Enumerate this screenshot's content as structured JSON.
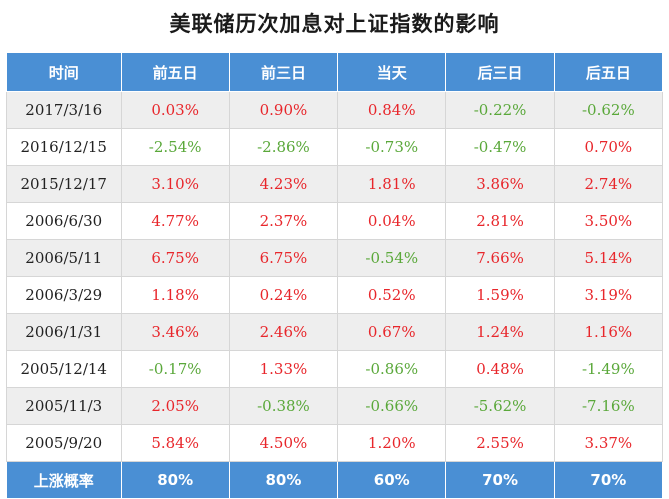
{
  "title": "美联储历次加息对上证指数的影响",
  "colors": {
    "header_bg": "#4a8fd4",
    "positive": "#e8262b",
    "negative": "#5aa83a",
    "stripe": "#eeeeee"
  },
  "columns": [
    "时间",
    "前五日",
    "前三日",
    "当天",
    "后三日",
    "后五日"
  ],
  "rows": [
    [
      "2017/3/16",
      "0.03%",
      "0.90%",
      "0.84%",
      "-0.22%",
      "-0.62%"
    ],
    [
      "2016/12/15",
      "-2.54%",
      "-2.86%",
      "-0.73%",
      "-0.47%",
      "0.70%"
    ],
    [
      "2015/12/17",
      "3.10%",
      "4.23%",
      "1.81%",
      "3.86%",
      "2.74%"
    ],
    [
      "2006/6/30",
      "4.77%",
      "2.37%",
      "0.04%",
      "2.81%",
      "3.50%"
    ],
    [
      "2006/5/11",
      "6.75%",
      "6.75%",
      "-0.54%",
      "7.66%",
      "5.14%"
    ],
    [
      "2006/3/29",
      "1.18%",
      "0.24%",
      "0.52%",
      "1.59%",
      "3.19%"
    ],
    [
      "2006/1/31",
      "3.46%",
      "2.46%",
      "0.67%",
      "1.24%",
      "1.16%"
    ],
    [
      "2005/12/14",
      "-0.17%",
      "1.33%",
      "-0.86%",
      "0.48%",
      "-1.49%"
    ],
    [
      "2005/11/3",
      "2.05%",
      "-0.38%",
      "-0.66%",
      "-5.62%",
      "-7.16%"
    ],
    [
      "2005/9/20",
      "5.84%",
      "4.50%",
      "1.20%",
      "2.55%",
      "3.37%"
    ]
  ],
  "footer": [
    "上涨概率",
    "80%",
    "80%",
    "60%",
    "70%",
    "70%"
  ]
}
